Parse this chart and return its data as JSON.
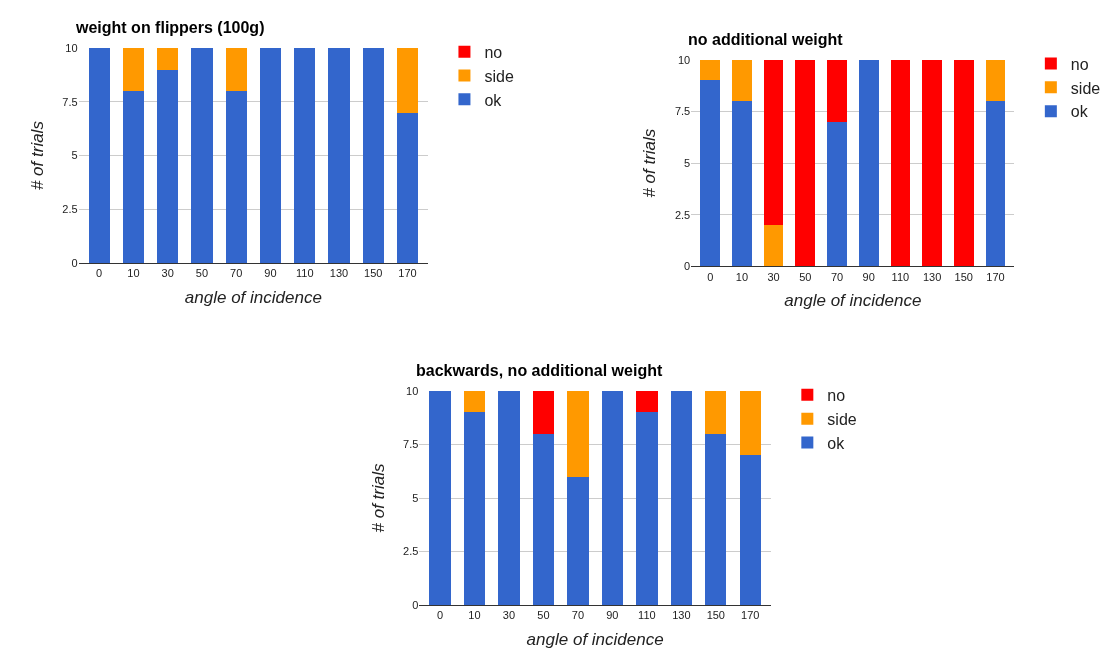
{
  "chart_data": [
    {
      "type": "bar",
      "title": "weight on flippers (100g)",
      "xlabel": "angle of incidence",
      "ylabel": "# of trials",
      "categories": [
        "0",
        "10",
        "30",
        "50",
        "70",
        "90",
        "110",
        "130",
        "150",
        "170"
      ],
      "stacked": true,
      "ylim": [
        0,
        10
      ],
      "yticks": [
        0,
        2.5,
        5,
        7.5,
        10
      ],
      "grid": "y",
      "legend": "right",
      "series": [
        {
          "name": "ok",
          "color": "#3366cc",
          "values": [
            10,
            8,
            9,
            10,
            8,
            10,
            10,
            10,
            10,
            7
          ]
        },
        {
          "name": "side",
          "color": "#ff9900",
          "values": [
            0,
            2,
            1,
            0,
            2,
            0,
            0,
            0,
            0,
            3
          ]
        },
        {
          "name": "no",
          "color": "#ff0000",
          "values": [
            0,
            0,
            0,
            0,
            0,
            0,
            0,
            0,
            0,
            0
          ]
        }
      ]
    },
    {
      "type": "bar",
      "title": "no additional weight",
      "xlabel": "angle of incidence",
      "ylabel": "# of trials",
      "categories": [
        "0",
        "10",
        "30",
        "50",
        "70",
        "90",
        "110",
        "130",
        "150",
        "170"
      ],
      "stacked": true,
      "ylim": [
        0,
        10
      ],
      "yticks": [
        0,
        2.5,
        5,
        7.5,
        10
      ],
      "grid": "y",
      "legend": "right",
      "series": [
        {
          "name": "ok",
          "color": "#3366cc",
          "values": [
            9,
            8,
            0,
            0,
            7,
            10,
            0,
            0,
            0,
            8
          ]
        },
        {
          "name": "side",
          "color": "#ff9900",
          "values": [
            1,
            2,
            2,
            0,
            0,
            0,
            0,
            0,
            0,
            2
          ]
        },
        {
          "name": "no",
          "color": "#ff0000",
          "values": [
            0,
            0,
            8,
            10,
            3,
            0,
            10,
            10,
            10,
            0
          ]
        }
      ]
    },
    {
      "type": "bar",
      "title": "backwards, no additional weight",
      "xlabel": "angle of incidence",
      "ylabel": "# of trials",
      "categories": [
        "0",
        "10",
        "30",
        "50",
        "70",
        "90",
        "110",
        "130",
        "150",
        "170"
      ],
      "stacked": true,
      "ylim": [
        0,
        10
      ],
      "yticks": [
        0,
        2.5,
        5,
        7.5,
        10
      ],
      "grid": "y",
      "legend": "right",
      "series": [
        {
          "name": "ok",
          "color": "#3366cc",
          "values": [
            10,
            9,
            10,
            8,
            6,
            10,
            9,
            10,
            8,
            7
          ]
        },
        {
          "name": "side",
          "color": "#ff9900",
          "values": [
            0,
            1,
            0,
            0,
            4,
            0,
            0,
            0,
            2,
            3
          ]
        },
        {
          "name": "no",
          "color": "#ff0000",
          "values": [
            0,
            0,
            0,
            2,
            0,
            0,
            1,
            0,
            0,
            0
          ]
        }
      ]
    }
  ]
}
